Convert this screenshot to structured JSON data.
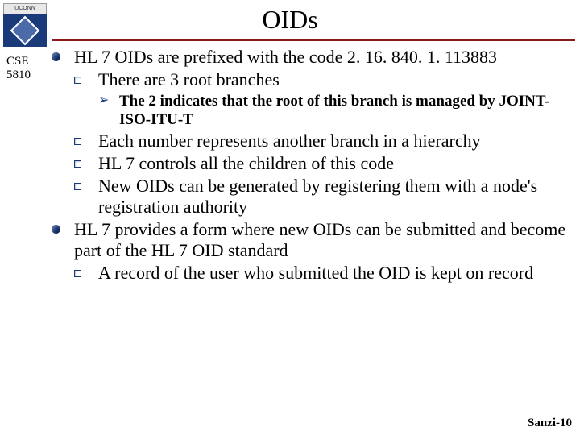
{
  "logo_text": "UCONN",
  "sidebar": {
    "line1": "CSE",
    "line2": "5810"
  },
  "title": "OIDs",
  "colors": {
    "accent": "#8b1a1a",
    "bullet": "#1a3a7a",
    "text": "#000000",
    "bg": "#ffffff"
  },
  "fonts": {
    "title_size": 32,
    "l1_size": 22,
    "l3_size": 19,
    "footer_size": 15
  },
  "items": {
    "p1": "HL 7 OIDs are prefixed with the code 2. 16. 840. 1. 113883",
    "p1a": "There are 3 root branches",
    "p1a1": "The 2 indicates that the root of this branch is managed by JOINT-ISO-ITU-T",
    "p1b": "Each number represents another branch in a hierarchy",
    "p1c": "HL 7 controls all the children of this code",
    "p1d": "New OIDs can be generated by registering them with a node's registration authority",
    "p2": "HL 7 provides a form where new OIDs can be submitted and become part of the HL 7 OID standard",
    "p2a": "A record of the user who submitted the OID is kept on record"
  },
  "footer": "Sanzi-10"
}
